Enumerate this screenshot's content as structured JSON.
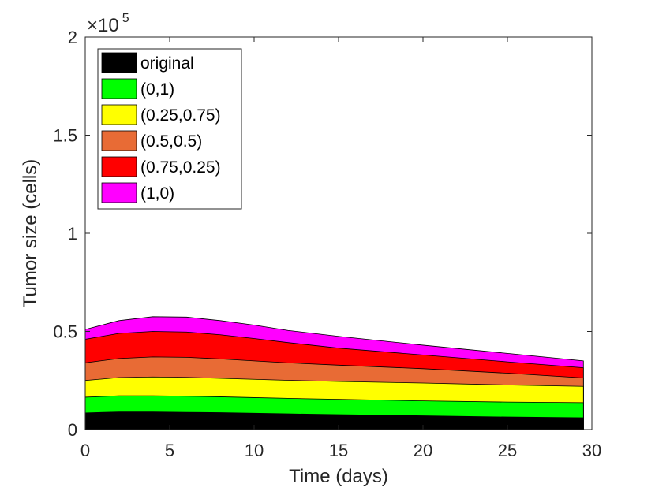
{
  "chart_data": {
    "type": "area",
    "xlabel": "Time (days)",
    "ylabel": "Tumor size (cells)",
    "y_exponent_label": "×10",
    "y_exponent_power": "5",
    "xlim": [
      0,
      30
    ],
    "ylim": [
      0,
      2
    ],
    "x_ticks": [
      0,
      5,
      10,
      15,
      20,
      25,
      30
    ],
    "x_tick_labels": [
      "0",
      "5",
      "10",
      "15",
      "20",
      "25",
      "30"
    ],
    "y_ticks": [
      0,
      0.5,
      1,
      1.5,
      2
    ],
    "y_tick_labels": [
      "0",
      "0.5",
      "1",
      "1.5",
      "2"
    ],
    "grid": false,
    "legend_position": "top-left",
    "x": [
      0,
      2,
      4,
      6,
      8,
      10,
      12,
      15,
      20,
      25,
      29.5
    ],
    "series": [
      {
        "name": "original",
        "color": "#000000",
        "values": [
          0.085,
          0.09,
          0.09,
          0.088,
          0.086,
          0.083,
          0.08,
          0.076,
          0.07,
          0.064,
          0.06
        ]
      },
      {
        "name": "(0,1)",
        "color": "#00ff00",
        "values": [
          0.165,
          0.172,
          0.172,
          0.17,
          0.167,
          0.163,
          0.159,
          0.154,
          0.146,
          0.14,
          0.137
        ]
      },
      {
        "name": "(0.25,0.75)",
        "color": "#ffff00",
        "values": [
          0.25,
          0.265,
          0.268,
          0.266,
          0.261,
          0.256,
          0.251,
          0.245,
          0.237,
          0.227,
          0.22
        ]
      },
      {
        "name": "(0.5,0.5)",
        "color": "#e86b35",
        "values": [
          0.34,
          0.362,
          0.37,
          0.368,
          0.36,
          0.35,
          0.34,
          0.328,
          0.31,
          0.287,
          0.263
        ]
      },
      {
        "name": "(0.75,0.25)",
        "color": "#ff0000",
        "values": [
          0.46,
          0.49,
          0.5,
          0.497,
          0.483,
          0.464,
          0.443,
          0.415,
          0.38,
          0.345,
          0.315
        ]
      },
      {
        "name": "(1,0)",
        "color": "#ff00ff",
        "values": [
          0.51,
          0.555,
          0.575,
          0.573,
          0.555,
          0.532,
          0.505,
          0.475,
          0.43,
          0.388,
          0.35
        ]
      }
    ]
  }
}
